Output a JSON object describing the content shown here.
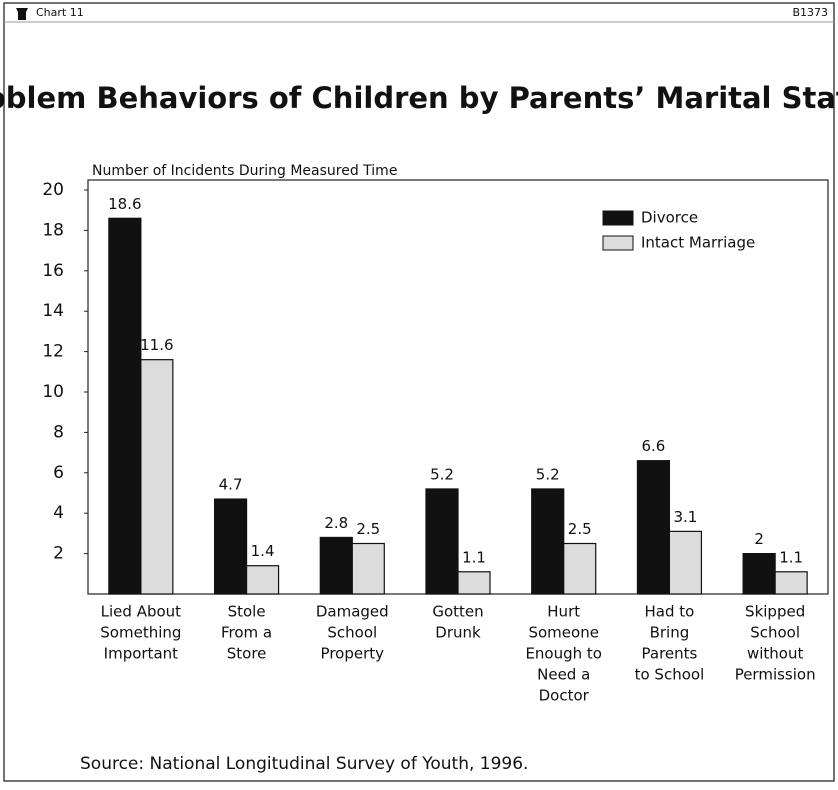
{
  "header": {
    "chart_number": "Chart 11",
    "code": "B1373"
  },
  "chart_data": {
    "type": "bar",
    "title": "Problem Behaviors of Children by Parents’ Marital Status",
    "y_label": "Number of Incidents During Measured Time",
    "source": "Source: National Longitudinal Survey of Youth, 1996.",
    "categories": [
      [
        "Lied About",
        "Something",
        "Important"
      ],
      [
        "Stole",
        "From a",
        "Store"
      ],
      [
        "Damaged",
        "School",
        "Property"
      ],
      [
        "Gotten",
        "Drunk"
      ],
      [
        "Hurt",
        "Someone",
        "Enough to",
        "Need a",
        "Doctor"
      ],
      [
        "Had to",
        "Bring",
        "Parents",
        "to School"
      ],
      [
        "Skipped",
        "School",
        "without",
        "Permission"
      ]
    ],
    "series": [
      {
        "name": "Divorce",
        "color": "#111111",
        "values": [
          18.6,
          4.7,
          2.8,
          5.2,
          5.2,
          6.6,
          2
        ]
      },
      {
        "name": "Intact Marriage",
        "color": "#dcdcdc",
        "values": [
          11.6,
          1.4,
          2.5,
          1.1,
          2.5,
          3.1,
          1.1
        ]
      }
    ],
    "ylim": [
      0,
      20
    ],
    "yticks": [
      2,
      4,
      6,
      8,
      10,
      12,
      14,
      16,
      18,
      20
    ],
    "legend": "upper right"
  }
}
